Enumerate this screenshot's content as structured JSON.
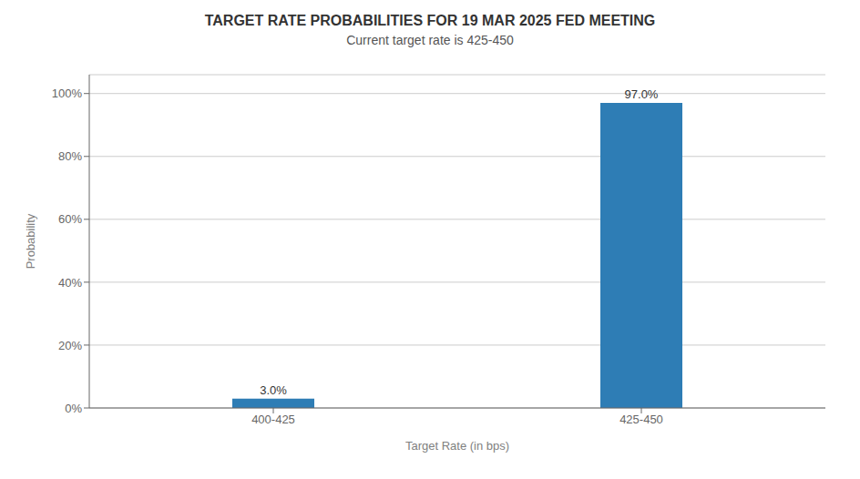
{
  "chart_data": {
    "type": "bar",
    "title": "TARGET RATE PROBABILITIES FOR 19 MAR 2025 FED MEETING",
    "subtitle": "Current target rate is 425-450",
    "xlabel": "Target Rate (in bps)",
    "ylabel": "Probability",
    "categories": [
      "400-425",
      "425-450"
    ],
    "values": [
      3.0,
      97.0
    ],
    "value_labels": [
      "3.0%",
      "97.0%"
    ],
    "color": "#2e7db5",
    "ylim": [
      0,
      106
    ],
    "yticks": [
      {
        "value": 0,
        "label": "0%"
      },
      {
        "value": 20,
        "label": "20%"
      },
      {
        "value": 40,
        "label": "40%"
      },
      {
        "value": 60,
        "label": "60%"
      },
      {
        "value": 80,
        "label": "80%"
      },
      {
        "value": 100,
        "label": "100%"
      }
    ],
    "grid": true,
    "data_labels": true
  }
}
